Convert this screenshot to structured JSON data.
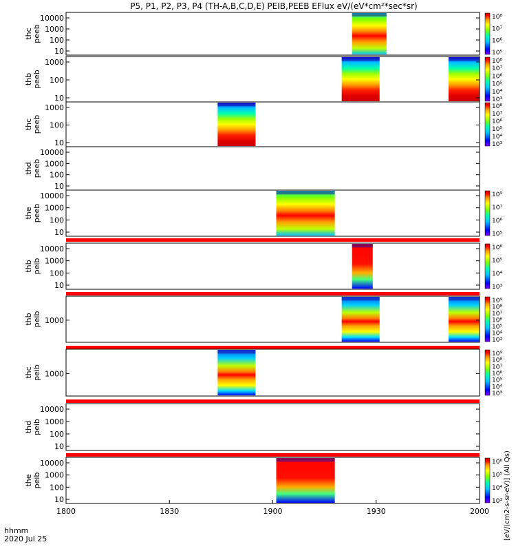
{
  "chart_data": {
    "type": "heatmap",
    "title": "P5, P1, P2, P3, P4 (TH-A,B,C,D,E) PEIB,PEEB EFlux eV/(eV*cm²*sec*sr)",
    "time_axis": {
      "unit_label": "hhmm",
      "date_label": "2020 Jul 25",
      "range": [
        "1800",
        "2000"
      ],
      "ticks": [
        "1800",
        "1830",
        "1900",
        "1930",
        "2000"
      ]
    },
    "panels": [
      {
        "probe": "thc",
        "instrument": "peeb",
        "y_ticks": [
          "10000",
          "1000",
          "100",
          "10"
        ],
        "intervals": [
          [
            1923,
            1933
          ]
        ],
        "colorbar": {
          "ticks": [
            "10⁸",
            "10⁷",
            "10⁶",
            "10⁵"
          ]
        }
      },
      {
        "probe": "thb",
        "instrument": "peeb",
        "y_ticks": [
          "1000",
          "100",
          "10"
        ],
        "intervals": [
          [
            1920,
            1931
          ],
          [
            1951,
            2000
          ]
        ],
        "colorbar": {
          "ticks": [
            "10⁸",
            "10⁷",
            "10⁶",
            "10⁵",
            "10⁴",
            "10³"
          ]
        }
      },
      {
        "probe": "thc",
        "instrument": "peeb",
        "y_ticks": [
          "1000",
          "100",
          "10"
        ],
        "intervals": [
          [
            1844,
            1855
          ]
        ],
        "colorbar": {
          "ticks": [
            "10⁸",
            "10⁷",
            "10⁶",
            "10⁵",
            "10⁴",
            "10³"
          ]
        }
      },
      {
        "probe": "thd",
        "instrument": "peeb",
        "y_ticks": [
          "10000",
          "1000",
          "100",
          "10"
        ],
        "intervals": [],
        "colorbar": null
      },
      {
        "probe": "the",
        "instrument": "peeb",
        "y_ticks": [
          "10000",
          "1000",
          "100",
          "10"
        ],
        "intervals": [
          [
            1901,
            1918
          ]
        ],
        "colorbar": {
          "ticks": [
            "10⁹",
            "10⁷",
            "10⁶",
            "10⁵"
          ]
        }
      },
      {
        "probe": "thb",
        "instrument": "peib",
        "y_ticks": [
          "10000",
          "1000",
          "100",
          "10"
        ],
        "intervals": [
          [
            1923,
            1929
          ]
        ],
        "colorbar": {
          "ticks": [
            "10⁶",
            "10⁵",
            "10⁴",
            "10³"
          ]
        }
      },
      {
        "probe": "thb",
        "instrument": "peib",
        "y_ticks": [
          "1000"
        ],
        "intervals": [
          [
            1920,
            1931
          ],
          [
            1951,
            2000
          ]
        ],
        "colorbar": {
          "ticks": [
            "10⁹",
            "10⁸",
            "10⁷",
            "10⁶",
            "10⁵",
            "10⁴",
            "10³"
          ]
        }
      },
      {
        "probe": "thc",
        "instrument": "peib",
        "y_ticks": [
          "1000"
        ],
        "intervals": [
          [
            1844,
            1855
          ]
        ],
        "colorbar": {
          "ticks": [
            "10⁹",
            "10⁸",
            "10⁷",
            "10⁶",
            "10⁵",
            "10⁴",
            "10³"
          ]
        }
      },
      {
        "probe": "thd",
        "instrument": "peib",
        "y_ticks": [
          "10000",
          "1000",
          "100",
          "10"
        ],
        "intervals": [],
        "colorbar": null
      },
      {
        "probe": "the",
        "instrument": "peib",
        "y_ticks": [
          "10000",
          "1000",
          "100",
          "10"
        ],
        "intervals": [
          [
            1901,
            1918
          ]
        ],
        "colorbar": {
          "ticks": [
            "10⁶",
            "10⁵",
            "10⁴",
            "10³"
          ]
        }
      }
    ],
    "colorbar_label": "[eV/(cm2-s-sr-eV)] (All Qs)",
    "colormap": [
      "#7f00ff",
      "#0000ff",
      "#00bfff",
      "#00ffb0",
      "#80ff00",
      "#ffff00",
      "#ff9900",
      "#ff0000",
      "#cc0000"
    ],
    "separator_color": "#ff0000"
  }
}
